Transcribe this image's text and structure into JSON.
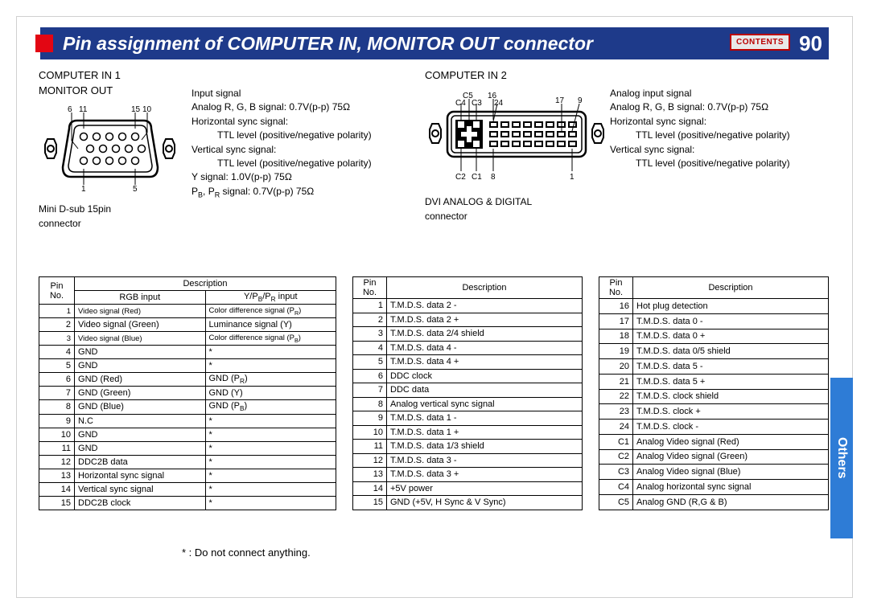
{
  "colors": {
    "title_bg": "#1e3a8a",
    "accent": "#e30613",
    "side_tab": "#2e7cd6",
    "contents_border": "#b00000"
  },
  "header": {
    "title": "Pin assignment of COMPUTER IN, MONITOR OUT connector",
    "contents_label": "CONTENTS",
    "page_number": "90",
    "side_tab": "Others"
  },
  "connector_left": {
    "title_line1": "COMPUTER IN 1",
    "title_line2": "MONITOR OUT",
    "pin_top_left": "11",
    "pin_top_right": "15",
    "pin_mid_left": "6",
    "pin_mid_right": "10",
    "pin_bot_left": "1",
    "pin_bot_right": "5",
    "label_line1": "Mini D-sub 15pin",
    "label_line2": "connector"
  },
  "sig_left": {
    "l1": "Input signal",
    "l2": "Analog R, G, B signal: 0.7V(p-p) 75Ω",
    "l3": "Horizontal sync signal:",
    "l3i": "TTL level (positive/negative polarity)",
    "l4": "Vertical sync signal:",
    "l4i": "TTL level  (positive/negative polarity)",
    "l5": "Y signal: 1.0V(p-p) 75Ω",
    "l6html": "P<sub>B</sub>, P<sub>R</sub> signal: 0.7V(p-p) 75Ω"
  },
  "connector_right": {
    "title": "COMPUTER IN 2",
    "lbl_c5": "C5",
    "lbl_c4": "C4",
    "lbl_c3": "C3",
    "lbl_16": "16",
    "lbl_24": "24",
    "lbl_17": "17",
    "lbl_9": "9",
    "lbl_c2": "C2",
    "lbl_c1": "C1",
    "lbl_8": "8",
    "lbl_1": "1",
    "label_line1": "DVI ANALOG & DIGITAL",
    "label_line2": "connector"
  },
  "sig_right": {
    "l1": "Analog input signal",
    "l2": "Analog R, G, B signal: 0.7V(p-p) 75Ω",
    "l3": "Horizontal sync signal:",
    "l3i": "TTL level (positive/negative polarity)",
    "l4": "Vertical sync signal:",
    "l4i": "TTL level (positive/negative polarity)"
  },
  "table1": {
    "head_pin": "Pin No.",
    "head_desc": "Description",
    "head_rgb": "RGB input",
    "head_ypbpr_html": "Y/P<sub>B</sub>/P<sub>R</sub> input",
    "rows": [
      {
        "pin": "1",
        "c1": "Video signal (Red)",
        "c2html": "Color difference signal (P<sub>R</sub>)"
      },
      {
        "pin": "2",
        "c1": "Video signal (Green)",
        "c2": "Luminance signal (Y)"
      },
      {
        "pin": "3",
        "c1": "Video signal (Blue)",
        "c2html": "Color difference signal (P<sub>B</sub>)"
      },
      {
        "pin": "4",
        "c1": "GND",
        "c2": "*"
      },
      {
        "pin": "5",
        "c1": "GND",
        "c2": "*"
      },
      {
        "pin": "6",
        "c1": "GND (Red)",
        "c2html": "GND (P<sub>R</sub>)"
      },
      {
        "pin": "7",
        "c1": "GND (Green)",
        "c2": "GND (Y)"
      },
      {
        "pin": "8",
        "c1": "GND (Blue)",
        "c2html": "GND (P<sub>B</sub>)"
      },
      {
        "pin": "9",
        "c1": "N.C",
        "c2": "*"
      },
      {
        "pin": "10",
        "c1": "GND",
        "c2": "*"
      },
      {
        "pin": "11",
        "c1": "GND",
        "c2": "*"
      },
      {
        "pin": "12",
        "c1": "DDC2B data",
        "c2": "*"
      },
      {
        "pin": "13",
        "c1": "Horizontal sync signal",
        "c2": "*"
      },
      {
        "pin": "14",
        "c1": "Vertical sync signal",
        "c2": "*"
      },
      {
        "pin": "15",
        "c1": "DDC2B clock",
        "c2": "*"
      }
    ]
  },
  "table2": {
    "head_pin": "Pin No.",
    "head_desc": "Description",
    "rows": [
      {
        "pin": "1",
        "c": "T.M.D.S. data 2 -"
      },
      {
        "pin": "2",
        "c": "T.M.D.S. data 2 +"
      },
      {
        "pin": "3",
        "c": "T.M.D.S. data 2/4 shield"
      },
      {
        "pin": "4",
        "c": "T.M.D.S. data 4 -"
      },
      {
        "pin": "5",
        "c": "T.M.D.S. data 4 +"
      },
      {
        "pin": "6",
        "c": "DDC clock"
      },
      {
        "pin": "7",
        "c": "DDC data"
      },
      {
        "pin": "8",
        "c": "Analog vertical sync signal"
      },
      {
        "pin": "9",
        "c": "T.M.D.S. data 1 -"
      },
      {
        "pin": "10",
        "c": "T.M.D.S. data 1 +"
      },
      {
        "pin": "11",
        "c": "T.M.D.S. data 1/3 shield"
      },
      {
        "pin": "12",
        "c": "T.M.D.S. data 3 -"
      },
      {
        "pin": "13",
        "c": "T.M.D.S. data 3 +"
      },
      {
        "pin": "14",
        "c": "+5V power"
      },
      {
        "pin": "15",
        "c": "GND (+5V, H Sync & V Sync)"
      }
    ]
  },
  "table3": {
    "head_pin": "Pin No.",
    "head_desc": "Description",
    "rows": [
      {
        "pin": "16",
        "c": "Hot plug detection"
      },
      {
        "pin": "17",
        "c": "T.M.D.S. data 0 -"
      },
      {
        "pin": "18",
        "c": "T.M.D.S. data 0 +"
      },
      {
        "pin": "19",
        "c": "T.M.D.S. data 0/5 shield"
      },
      {
        "pin": "20",
        "c": "T.M.D.S. data 5 -"
      },
      {
        "pin": "21",
        "c": "T.M.D.S. data 5 +"
      },
      {
        "pin": "22",
        "c": "T.M.D.S. clock shield"
      },
      {
        "pin": "23",
        "c": "T.M.D.S. clock +"
      },
      {
        "pin": "24",
        "c": "T.M.D.S. clock -"
      },
      {
        "pin": "C1",
        "c": "Analog Video signal (Red)"
      },
      {
        "pin": "C2",
        "c": "Analog Video signal (Green)"
      },
      {
        "pin": "C3",
        "c": "Analog Video signal (Blue)"
      },
      {
        "pin": "C4",
        "c": "Analog horizontal sync signal"
      },
      {
        "pin": "C5",
        "c": "Analog GND (R,G & B)"
      }
    ]
  },
  "footnote": "* : Do not connect anything."
}
